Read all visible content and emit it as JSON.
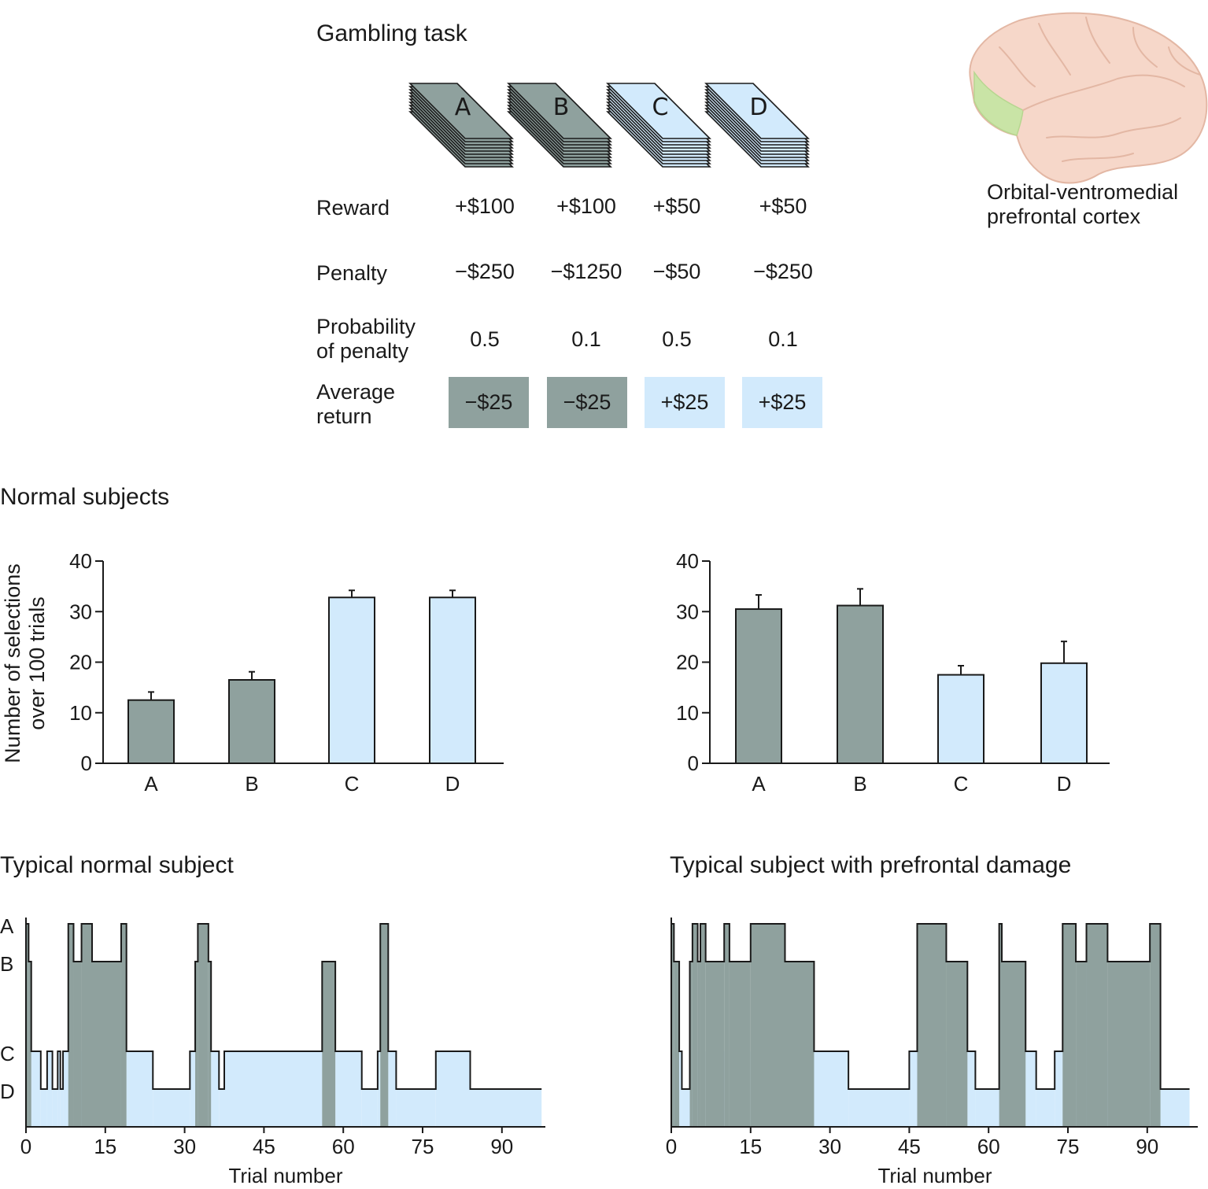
{
  "colors": {
    "dark": "#8fa19e",
    "light": "#d2eafc",
    "stroke": "#1a1a1a",
    "cortex": "#f6d7c9",
    "orbital": "#c9e4a6"
  },
  "task": {
    "title": "Gambling task",
    "decks": [
      {
        "label": "A",
        "tone": "dark"
      },
      {
        "label": "B",
        "tone": "dark"
      },
      {
        "label": "C",
        "tone": "light"
      },
      {
        "label": "D",
        "tone": "light"
      }
    ],
    "rows": {
      "reward": {
        "label": "Reward",
        "values": [
          "+$100",
          "+$100",
          "+$50",
          "+$50"
        ]
      },
      "penalty": {
        "label": "Penalty",
        "values": [
          "−$250",
          "−$1250",
          "−$50",
          "−$250"
        ]
      },
      "probability": {
        "label_line1": "Probability",
        "label_line2": "of penalty",
        "values": [
          "0.5",
          "0.1",
          "0.5",
          "0.1"
        ]
      },
      "average": {
        "label_line1": "Average",
        "label_line2": "return",
        "values": [
          "−$25",
          "−$25",
          "+$25",
          "+$25"
        ]
      }
    }
  },
  "brain": {
    "caption_line1": "Orbital-ventromedial",
    "caption_line2": "prefrontal cortex",
    "icon": "brain-icon"
  },
  "chart_data": [
    {
      "type": "bar",
      "title": "Normal subjects",
      "ylabel_line1": "Number of selections",
      "ylabel_line2": "over 100 trials",
      "categories": [
        "A",
        "B",
        "C",
        "D"
      ],
      "values": [
        12.5,
        16.5,
        32.8,
        32.8
      ],
      "errors": [
        1.6,
        1.6,
        1.4,
        1.4
      ],
      "tones": [
        "dark",
        "dark",
        "light",
        "light"
      ],
      "ylim": [
        0,
        40
      ],
      "yticks": [
        0,
        10,
        20,
        30,
        40
      ]
    },
    {
      "type": "bar",
      "title": "",
      "categories": [
        "A",
        "B",
        "C",
        "D"
      ],
      "values": [
        30.5,
        31.2,
        17.5,
        19.8
      ],
      "errors": [
        2.8,
        3.3,
        1.8,
        4.3
      ],
      "tones": [
        "dark",
        "dark",
        "light",
        "light"
      ],
      "ylim": [
        0,
        40
      ],
      "yticks": [
        0,
        10,
        20,
        30,
        40
      ]
    },
    {
      "type": "area",
      "title": "Typical normal subject",
      "xlabel": "Trial number",
      "ylevels": [
        "A",
        "B",
        "C",
        "D"
      ],
      "xlim": [
        0,
        98
      ],
      "xticks": [
        0,
        15,
        30,
        45,
        60,
        75,
        90
      ],
      "steps": [
        [
          "A",
          0
        ],
        [
          "B",
          0.5
        ],
        [
          "C",
          1
        ],
        [
          "D",
          2.8
        ],
        [
          "C",
          4
        ],
        [
          "D",
          5
        ],
        [
          "C",
          6
        ],
        [
          "D",
          6.5
        ],
        [
          "C",
          7
        ],
        [
          "A",
          8
        ],
        [
          "B",
          9
        ],
        [
          "A",
          10.5
        ],
        [
          "B",
          12.5
        ],
        [
          "A",
          18
        ],
        [
          "C",
          19
        ],
        [
          "D",
          24
        ],
        [
          "C",
          31
        ],
        [
          "B",
          32
        ],
        [
          "A",
          32.5
        ],
        [
          "B",
          34.5
        ],
        [
          "C",
          35
        ],
        [
          "D",
          36.5
        ],
        [
          "C",
          37.5
        ],
        [
          "B",
          56
        ],
        [
          "C",
          58.5
        ],
        [
          "D",
          63.5
        ],
        [
          "C",
          66.5
        ],
        [
          "A",
          67
        ],
        [
          "C",
          68.5
        ],
        [
          "D",
          70
        ],
        [
          "C",
          77.5
        ],
        [
          "D",
          84
        ],
        [
          "D",
          97.5
        ]
      ]
    },
    {
      "type": "area",
      "title": "Typical subject with prefrontal damage",
      "xlabel": "Trial number",
      "ylevels": [
        "A",
        "B",
        "C",
        "D"
      ],
      "xlim": [
        0,
        98
      ],
      "xticks": [
        0,
        15,
        30,
        45,
        60,
        75,
        90
      ],
      "steps": [
        [
          "A",
          0
        ],
        [
          "B",
          0.5
        ],
        [
          "C",
          1.5
        ],
        [
          "D",
          2
        ],
        [
          "B",
          3.5
        ],
        [
          "A",
          4
        ],
        [
          "B",
          5
        ],
        [
          "A",
          5.5
        ],
        [
          "B",
          6.5
        ],
        [
          "A",
          10
        ],
        [
          "B",
          11
        ],
        [
          "A",
          15
        ],
        [
          "B",
          21.5
        ],
        [
          "C",
          27
        ],
        [
          "D",
          33.5
        ],
        [
          "C",
          45
        ],
        [
          "A",
          46.5
        ],
        [
          "B",
          52
        ],
        [
          "C",
          56
        ],
        [
          "D",
          57.5
        ],
        [
          "A",
          62
        ],
        [
          "B",
          62.5
        ],
        [
          "C",
          67
        ],
        [
          "D",
          69
        ],
        [
          "C",
          72.5
        ],
        [
          "A",
          74
        ],
        [
          "B",
          76.5
        ],
        [
          "A",
          78.5
        ],
        [
          "B",
          82.5
        ],
        [
          "A",
          90.5
        ],
        [
          "D",
          92.5
        ],
        [
          "D",
          98
        ]
      ]
    }
  ]
}
